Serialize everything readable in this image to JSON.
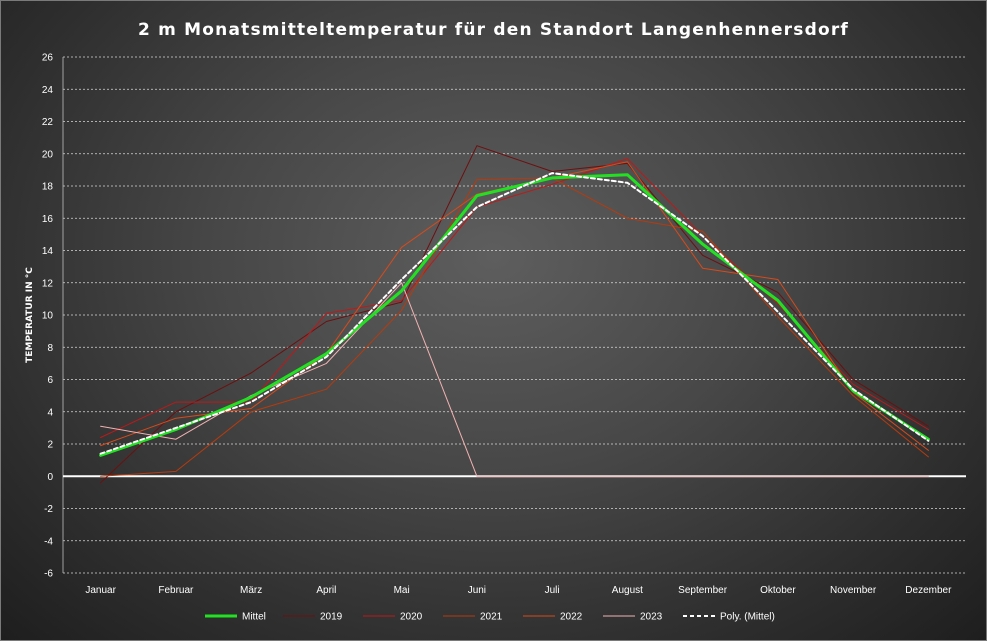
{
  "chart_data": {
    "type": "line",
    "title": "2 m Monatsmitteltemperatur  für den Standort  Langenhennersdorf",
    "ylabel": "TEMPERATUR IN °C",
    "xlabel": "",
    "ylim": [
      -6,
      26
    ],
    "yticks": [
      -6,
      -4,
      -2,
      0,
      2,
      4,
      6,
      8,
      10,
      12,
      14,
      16,
      18,
      20,
      22,
      24,
      26
    ],
    "grid": true,
    "legend": "bottom",
    "categories": [
      "Januar",
      "Februar",
      "März",
      "April",
      "Mai",
      "Juni",
      "Juli",
      "August",
      "September",
      "Oktober",
      "November",
      "Dezember"
    ],
    "series": [
      {
        "name": "2019",
        "color": "#6e0f0f",
        "width": 1,
        "dash": "",
        "values": [
          -0.4,
          4.0,
          6.4,
          9.6,
          10.8,
          20.5,
          18.9,
          19.4,
          13.7,
          11.4,
          6.0,
          3.1
        ]
      },
      {
        "name": "2020",
        "color": "#c01818",
        "width": 1,
        "dash": "",
        "values": [
          2.4,
          4.6,
          4.6,
          10.1,
          10.9,
          16.7,
          18.1,
          19.7,
          14.9,
          10.7,
          5.7,
          2.9
        ]
      },
      {
        "name": "2021",
        "color": "#b83a0c",
        "width": 1,
        "dash": "",
        "values": [
          0.0,
          0.3,
          4.0,
          5.4,
          10.3,
          18.4,
          18.5,
          16.0,
          15.2,
          9.9,
          5.0,
          1.2
        ]
      },
      {
        "name": "2022",
        "color": "#d84a1a",
        "width": 1,
        "dash": "",
        "values": [
          1.9,
          3.6,
          4.2,
          7.6,
          14.2,
          17.5,
          18.5,
          19.5,
          12.9,
          12.2,
          5.2,
          1.6
        ]
      },
      {
        "name": "2023",
        "color": "#f2b2b2",
        "width": 1,
        "dash": "",
        "values": [
          3.1,
          2.3,
          5.0,
          7.0,
          12.0,
          0.0,
          0.0,
          0.0,
          0.0,
          0.0,
          0.0,
          0.0
        ]
      },
      {
        "name": "Mittel",
        "color": "#22e022",
        "width": 3,
        "dash": "",
        "values": [
          1.3,
          2.9,
          4.9,
          7.6,
          11.5,
          17.4,
          18.5,
          18.7,
          14.4,
          10.9,
          5.3,
          2.3
        ]
      },
      {
        "name": "Poly. (Mittel)",
        "color": "#ffffff",
        "width": 2,
        "dash": "4 3",
        "values": [
          1.4,
          3.0,
          4.6,
          7.4,
          12.2,
          16.7,
          18.8,
          18.2,
          14.9,
          10.2,
          5.4,
          2.2
        ]
      }
    ],
    "legend_order": [
      "Mittel",
      "2019",
      "2020",
      "2021",
      "2022",
      "2023",
      "Poly. (Mittel)"
    ]
  }
}
